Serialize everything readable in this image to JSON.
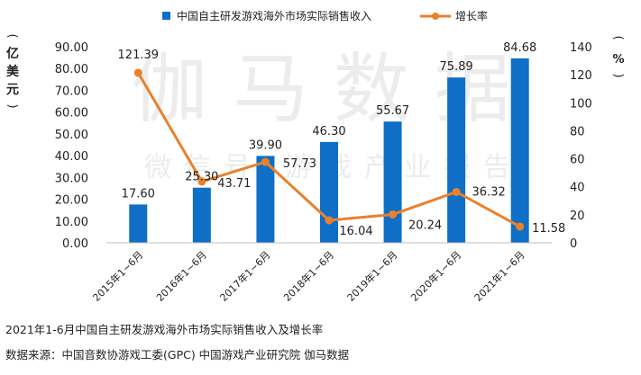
{
  "chart_data": {
    "type": "bar",
    "title": "2021年1-6月中国自主研发游戏海外市场实际销售收入及增长率",
    "categories": [
      "2015年1~6月",
      "2016年1~6月",
      "2017年1~6月",
      "2018年1~6月",
      "2019年1~6月",
      "2020年1~6月",
      "2021年1~6月"
    ],
    "series": [
      {
        "name": "中国自主研发游戏海外市场实际销售收入",
        "type": "bar",
        "axis": "left",
        "values": [
          17.6,
          25.3,
          39.9,
          46.3,
          55.67,
          75.89,
          84.68
        ],
        "labels": [
          "17.60",
          "25.30",
          "39.90",
          "46.30",
          "55.67",
          "75.89",
          "84.68"
        ],
        "color": "#0f6fc6"
      },
      {
        "name": "增长率",
        "type": "line",
        "axis": "right",
        "values": [
          121.39,
          43.71,
          57.73,
          16.04,
          20.24,
          36.32,
          11.58
        ],
        "labels": [
          "121.39",
          "43.71",
          "57.73",
          "16.04",
          "20.24",
          "36.32",
          "11.58"
        ],
        "color": "#e9812d"
      }
    ],
    "ylabel": "亿美元",
    "ylabel_chars": [
      "亿",
      "美",
      "元"
    ],
    "y2label": "%",
    "ylim": [
      0,
      90
    ],
    "y2lim": [
      0,
      140
    ],
    "yticks": [
      "0.00",
      "10.00",
      "20.00",
      "30.00",
      "40.00",
      "50.00",
      "60.00",
      "70.00",
      "80.00",
      "90.00"
    ],
    "y2ticks": [
      "0",
      "20",
      "40",
      "60",
      "80",
      "100",
      "120",
      "140"
    ],
    "watermark": {
      "main": "伽马数据",
      "sub": "微信号:游戏产业报告"
    },
    "legend_position": "top"
  },
  "caption": {
    "title": "2021年1-6月中国自主研发游戏海外市场实际销售收入及增长率",
    "source": "数据来源：中国音数协游戏工委(GPC) 中国游戏产业研究院  伽马数据"
  },
  "colors": {
    "bar": "#0f6fc6",
    "line": "#e9812d",
    "axis": "#bfbfbf",
    "watermark": "#e9e9e9"
  }
}
